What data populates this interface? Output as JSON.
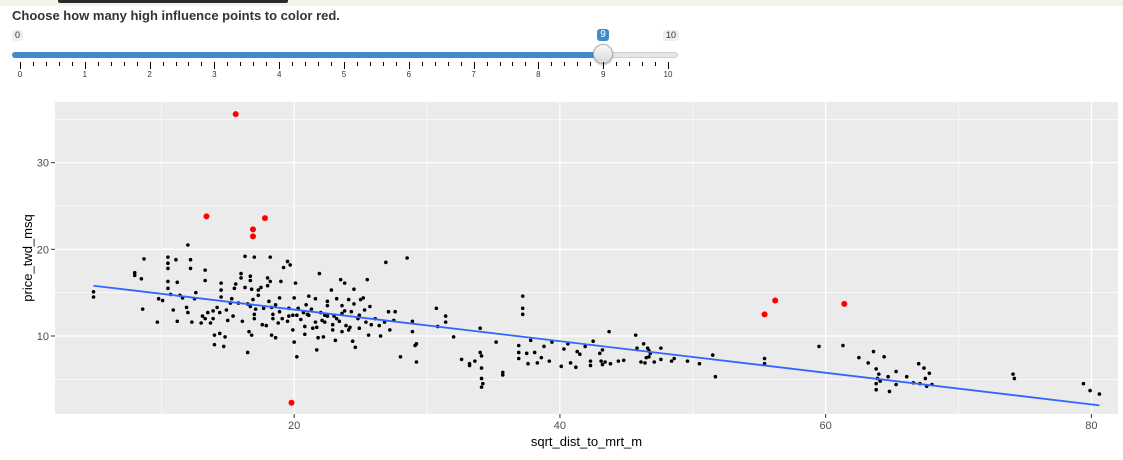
{
  "slider": {
    "label": "Choose how many high influence points to color red.",
    "min_label": "0",
    "max_label": "10",
    "value_label": "9",
    "min": 0,
    "max": 10,
    "value": 9,
    "tick_labels": [
      "0",
      "1",
      "2",
      "3",
      "4",
      "5",
      "6",
      "7",
      "8",
      "9",
      "10"
    ],
    "fill_color": "#428bca"
  },
  "chart_data": {
    "type": "scatter",
    "xlabel": "sqrt_dist_to_mrt_m",
    "ylabel": "price_twd_msq",
    "xlim": [
      2,
      82
    ],
    "ylim": [
      1,
      37
    ],
    "x_ticks": [
      20,
      40,
      60,
      80
    ],
    "y_ticks": [
      10,
      20,
      30
    ],
    "grid": true,
    "panel_color": "#ebebeb",
    "point_color": "#000000",
    "highlight_color": "#ff0000",
    "line_color": "#3366ff",
    "fit_line": {
      "x": [
        4.9,
        80.6
      ],
      "y": [
        15.8,
        2.0
      ]
    },
    "highlighted_points": [
      {
        "x": 15.6,
        "y": 35.6
      },
      {
        "x": 13.4,
        "y": 23.8
      },
      {
        "x": 17.8,
        "y": 23.6
      },
      {
        "x": 16.9,
        "y": 22.3
      },
      {
        "x": 16.9,
        "y": 21.5
      },
      {
        "x": 19.8,
        "y": 2.3
      },
      {
        "x": 55.4,
        "y": 12.5
      },
      {
        "x": 56.2,
        "y": 14.1
      },
      {
        "x": 61.4,
        "y": 13.7
      }
    ],
    "points": [
      [
        4.9,
        15.1
      ],
      [
        4.9,
        14.5
      ],
      [
        8.0,
        17.3
      ],
      [
        8.0,
        17.0
      ],
      [
        8.5,
        16.6
      ],
      [
        8.7,
        18.9
      ],
      [
        8.6,
        13.1
      ],
      [
        10.1,
        14.1
      ],
      [
        9.8,
        14.3
      ],
      [
        9.7,
        11.6
      ],
      [
        10.5,
        15.5
      ],
      [
        10.5,
        16.3
      ],
      [
        10.5,
        17.8
      ],
      [
        10.5,
        18.4
      ],
      [
        10.5,
        19.1
      ],
      [
        10.7,
        14.8
      ],
      [
        10.9,
        13.0
      ],
      [
        11.1,
        18.8
      ],
      [
        11.2,
        16.2
      ],
      [
        11.2,
        11.7
      ],
      [
        11.4,
        14.7
      ],
      [
        11.6,
        14.4
      ],
      [
        11.9,
        13.3
      ],
      [
        12.0,
        20.5
      ],
      [
        12.0,
        12.7
      ],
      [
        12.2,
        18.8
      ],
      [
        12.2,
        17.8
      ],
      [
        12.3,
        11.6
      ],
      [
        12.5,
        14.3
      ],
      [
        12.6,
        15.0
      ],
      [
        13.0,
        11.5
      ],
      [
        13.1,
        12.3
      ],
      [
        13.3,
        17.6
      ],
      [
        13.3,
        16.4
      ],
      [
        13.3,
        12.0
      ],
      [
        13.5,
        12.7
      ],
      [
        13.7,
        11.5
      ],
      [
        13.9,
        12.0
      ],
      [
        13.9,
        12.9
      ],
      [
        14.0,
        9.0
      ],
      [
        14.0,
        10.1
      ],
      [
        14.2,
        13.3
      ],
      [
        14.4,
        10.3
      ],
      [
        14.4,
        12.7
      ],
      [
        14.5,
        14.5
      ],
      [
        14.5,
        15.3
      ],
      [
        14.5,
        16.1
      ],
      [
        14.7,
        8.8
      ],
      [
        14.8,
        9.9
      ],
      [
        14.9,
        13.0
      ],
      [
        15.0,
        11.8
      ],
      [
        15.2,
        13.8
      ],
      [
        15.3,
        14.3
      ],
      [
        15.4,
        12.3
      ],
      [
        15.5,
        15.5
      ],
      [
        15.6,
        16.0
      ],
      [
        15.8,
        13.8
      ],
      [
        16.0,
        16.7
      ],
      [
        16.0,
        17.2
      ],
      [
        16.1,
        11.7
      ],
      [
        16.3,
        15.6
      ],
      [
        16.3,
        19.2
      ],
      [
        16.5,
        13.7
      ],
      [
        16.5,
        8.1
      ],
      [
        16.6,
        10.5
      ],
      [
        16.7,
        13.4
      ],
      [
        16.7,
        16.4
      ],
      [
        16.7,
        16.9
      ],
      [
        16.8,
        15.4
      ],
      [
        16.8,
        10.1
      ],
      [
        16.9,
        14.2
      ],
      [
        17.0,
        12.5
      ],
      [
        17.0,
        12.0
      ],
      [
        17.0,
        19.1
      ],
      [
        17.1,
        13.1
      ],
      [
        17.3,
        14.7
      ],
      [
        17.3,
        15.3
      ],
      [
        17.5,
        15.6
      ],
      [
        17.6,
        11.3
      ],
      [
        17.7,
        13.2
      ],
      [
        17.9,
        11.2
      ],
      [
        18.0,
        16.7
      ],
      [
        18.0,
        15.8
      ],
      [
        18.1,
        14.0
      ],
      [
        18.2,
        16.3
      ],
      [
        18.2,
        19.1
      ],
      [
        18.3,
        13.3
      ],
      [
        18.3,
        10.1
      ],
      [
        18.4,
        12.5
      ],
      [
        18.4,
        12.0
      ],
      [
        18.6,
        13.6
      ],
      [
        18.6,
        9.8
      ],
      [
        18.8,
        11.5
      ],
      [
        18.9,
        12.8
      ],
      [
        18.9,
        14.4
      ],
      [
        19.0,
        16.3
      ],
      [
        19.1,
        12.0
      ],
      [
        19.2,
        17.9
      ],
      [
        19.5,
        18.6
      ],
      [
        19.5,
        11.7
      ],
      [
        19.6,
        13.2
      ],
      [
        19.6,
        12.3
      ],
      [
        19.7,
        18.2
      ],
      [
        19.9,
        10.7
      ],
      [
        19.9,
        12.4
      ],
      [
        20.0,
        9.3
      ],
      [
        20.0,
        14.4
      ],
      [
        20.1,
        16.1
      ],
      [
        20.2,
        7.6
      ],
      [
        20.2,
        12.4
      ],
      [
        20.3,
        13.2
      ],
      [
        20.5,
        11.9
      ],
      [
        20.7,
        12.7
      ],
      [
        20.8,
        10.2
      ],
      [
        20.8,
        11.1
      ],
      [
        20.9,
        13.6
      ],
      [
        21.0,
        12.5
      ],
      [
        21.1,
        12.4
      ],
      [
        21.1,
        14.6
      ],
      [
        21.3,
        13.1
      ],
      [
        21.4,
        10.9
      ],
      [
        21.6,
        14.3
      ],
      [
        21.6,
        11.6
      ],
      [
        21.7,
        11.0
      ],
      [
        21.7,
        8.4
      ],
      [
        21.8,
        9.8
      ],
      [
        21.9,
        17.2
      ],
      [
        22.0,
        12.7
      ],
      [
        22.1,
        11.8
      ],
      [
        22.2,
        9.9
      ],
      [
        22.3,
        11.6
      ],
      [
        22.3,
        12.4
      ],
      [
        22.5,
        12.3
      ],
      [
        22.5,
        14.0
      ],
      [
        22.5,
        13.5
      ],
      [
        22.8,
        15.3
      ],
      [
        22.9,
        10.7
      ],
      [
        22.9,
        11.3
      ],
      [
        23.0,
        12.3
      ],
      [
        23.1,
        9.5
      ],
      [
        23.2,
        14.3
      ],
      [
        23.2,
        12.0
      ],
      [
        23.4,
        11.7
      ],
      [
        23.5,
        16.5
      ],
      [
        23.6,
        10.5
      ],
      [
        23.6,
        13.5
      ],
      [
        23.6,
        12.6
      ],
      [
        23.8,
        16.1
      ],
      [
        23.8,
        12.9
      ],
      [
        23.9,
        11.2
      ],
      [
        24.1,
        10.7
      ],
      [
        24.1,
        14.2
      ],
      [
        24.2,
        11.0
      ],
      [
        24.3,
        12.8
      ],
      [
        24.4,
        9.4
      ],
      [
        24.5,
        15.4
      ],
      [
        24.5,
        13.7
      ],
      [
        24.6,
        8.7
      ],
      [
        24.8,
        12.0
      ],
      [
        24.9,
        10.9
      ],
      [
        24.9,
        12.4
      ],
      [
        25.0,
        14.2
      ],
      [
        25.2,
        14.4
      ],
      [
        25.3,
        13.0
      ],
      [
        25.4,
        11.6
      ],
      [
        25.5,
        16.5
      ],
      [
        25.6,
        10.1
      ],
      [
        25.7,
        13.4
      ],
      [
        25.8,
        11.3
      ],
      [
        26.1,
        12.0
      ],
      [
        26.4,
        11.2
      ],
      [
        26.5,
        10.0
      ],
      [
        26.8,
        11.6
      ],
      [
        26.9,
        18.5
      ],
      [
        27.1,
        12.8
      ],
      [
        27.2,
        10.7
      ],
      [
        27.5,
        11.8
      ],
      [
        27.6,
        12.8
      ],
      [
        28.0,
        7.6
      ],
      [
        28.5,
        19.0
      ],
      [
        28.9,
        11.7
      ],
      [
        28.9,
        10.5
      ],
      [
        29.1,
        8.9
      ],
      [
        29.2,
        7.0
      ],
      [
        29.2,
        9.1
      ],
      [
        30.7,
        13.2
      ],
      [
        30.8,
        11.1
      ],
      [
        31.4,
        12.3
      ],
      [
        31.4,
        11.6
      ],
      [
        32.0,
        9.9
      ],
      [
        32.6,
        7.3
      ],
      [
        33.2,
        6.8
      ],
      [
        33.2,
        6.6
      ],
      [
        33.6,
        7.1
      ],
      [
        34.0,
        10.9
      ],
      [
        34.0,
        8.1
      ],
      [
        34.1,
        7.7
      ],
      [
        34.1,
        6.3
      ],
      [
        34.1,
        5.1
      ],
      [
        34.1,
        4.1
      ],
      [
        34.2,
        4.5
      ],
      [
        35.2,
        9.3
      ],
      [
        35.7,
        5.8
      ],
      [
        35.7,
        5.5
      ],
      [
        36.9,
        8.9
      ],
      [
        36.9,
        8.1
      ],
      [
        36.9,
        7.4
      ],
      [
        37.2,
        13.2
      ],
      [
        37.2,
        12.5
      ],
      [
        37.2,
        14.6
      ],
      [
        37.5,
        8.0
      ],
      [
        37.6,
        6.8
      ],
      [
        37.8,
        9.5
      ],
      [
        38.1,
        8.1
      ],
      [
        38.3,
        6.9
      ],
      [
        38.6,
        7.5
      ],
      [
        38.8,
        8.8
      ],
      [
        39.2,
        7.1
      ],
      [
        39.4,
        9.3
      ],
      [
        40.1,
        6.5
      ],
      [
        40.3,
        8.5
      ],
      [
        40.6,
        9.1
      ],
      [
        40.8,
        6.9
      ],
      [
        41.2,
        6.4
      ],
      [
        41.3,
        8.2
      ],
      [
        41.5,
        7.9
      ],
      [
        41.9,
        8.8
      ],
      [
        42.3,
        7.1
      ],
      [
        42.3,
        6.6
      ],
      [
        42.5,
        9.4
      ],
      [
        43.0,
        8.0
      ],
      [
        43.1,
        7.1
      ],
      [
        43.2,
        6.7
      ],
      [
        43.2,
        8.4
      ],
      [
        43.4,
        7.0
      ],
      [
        43.7,
        10.5
      ],
      [
        43.8,
        6.8
      ],
      [
        44.4,
        7.1
      ],
      [
        44.8,
        7.2
      ],
      [
        45.7,
        10.1
      ],
      [
        45.8,
        8.6
      ],
      [
        46.1,
        7.0
      ],
      [
        46.3,
        9.1
      ],
      [
        46.4,
        6.9
      ],
      [
        46.5,
        7.5
      ],
      [
        46.6,
        8.6
      ],
      [
        46.7,
        7.6
      ],
      [
        46.7,
        8.3
      ],
      [
        46.8,
        8.0
      ],
      [
        47.1,
        7.0
      ],
      [
        47.6,
        8.6
      ],
      [
        47.6,
        7.3
      ],
      [
        48.4,
        7.1
      ],
      [
        48.6,
        7.4
      ],
      [
        49.6,
        7.1
      ],
      [
        50.5,
        6.8
      ],
      [
        51.5,
        7.8
      ],
      [
        51.7,
        5.3
      ],
      [
        55.4,
        6.8
      ],
      [
        55.4,
        7.4
      ],
      [
        59.5,
        8.8
      ],
      [
        61.3,
        8.9
      ],
      [
        62.5,
        7.5
      ],
      [
        63.2,
        6.9
      ],
      [
        63.6,
        8.2
      ],
      [
        63.8,
        4.5
      ],
      [
        63.8,
        3.8
      ],
      [
        63.8,
        6.2
      ],
      [
        63.9,
        5.1
      ],
      [
        64.0,
        5.6
      ],
      [
        64.1,
        4.8
      ],
      [
        64.4,
        7.6
      ],
      [
        64.7,
        5.3
      ],
      [
        64.8,
        3.6
      ],
      [
        65.3,
        5.9
      ],
      [
        65.3,
        4.4
      ],
      [
        66.1,
        5.3
      ],
      [
        66.6,
        4.6
      ],
      [
        67.0,
        6.8
      ],
      [
        67.1,
        4.5
      ],
      [
        67.4,
        6.3
      ],
      [
        67.5,
        5.1
      ],
      [
        67.6,
        4.2
      ],
      [
        67.8,
        5.7
      ],
      [
        68.0,
        4.4
      ],
      [
        74.1,
        5.6
      ],
      [
        74.2,
        5.1
      ],
      [
        79.4,
        4.5
      ],
      [
        79.9,
        3.7
      ],
      [
        80.6,
        3.3
      ]
    ]
  }
}
